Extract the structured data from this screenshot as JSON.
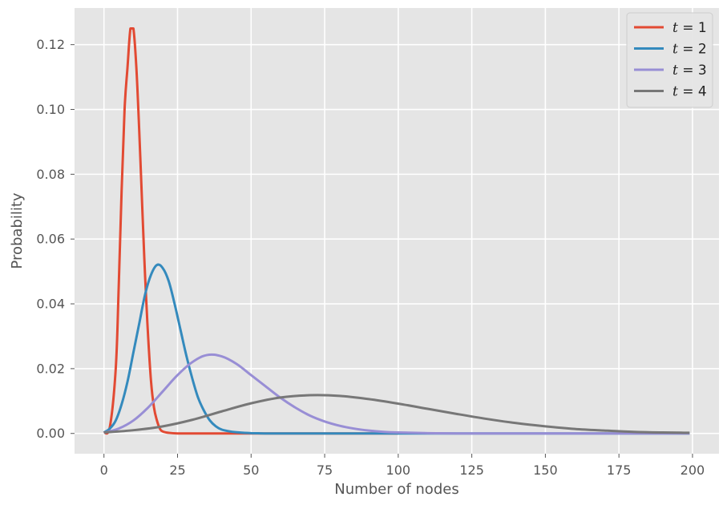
{
  "chart_data": {
    "type": "line",
    "title": "",
    "xlabel": "Number of nodes",
    "ylabel": "Probability",
    "xlim": [
      -10,
      209
    ],
    "ylim": [
      -0.00625,
      0.1313
    ],
    "xticks": [
      0,
      25,
      50,
      75,
      100,
      125,
      150,
      175,
      200
    ],
    "yticks": [
      0.0,
      0.02,
      0.04,
      0.06,
      0.08,
      0.1,
      0.12
    ],
    "xtick_labels": [
      "0",
      "25",
      "50",
      "75",
      "100",
      "125",
      "150",
      "175",
      "200"
    ],
    "ytick_labels": [
      "0.00",
      "0.02",
      "0.04",
      "0.06",
      "0.08",
      "0.10",
      "0.12"
    ],
    "grid": true,
    "legend_position": "top-right",
    "series": [
      {
        "name": "t = 1",
        "color": "#E24A33",
        "x": [
          0,
          2,
          4,
          5,
          6,
          7,
          8,
          9,
          10,
          11,
          12,
          13,
          14,
          15,
          16,
          17,
          18,
          19,
          20,
          22,
          25,
          30,
          40,
          60,
          80,
          100
        ],
        "y": [
          0.0002,
          0.002,
          0.02,
          0.045,
          0.075,
          0.1,
          0.113,
          0.125,
          0.125,
          0.113,
          0.093,
          0.07,
          0.048,
          0.03,
          0.016,
          0.008,
          0.004,
          0.0015,
          0.0006,
          0.0002,
          0.0,
          0.0,
          0.0,
          0.0,
          0.0,
          0.0
        ]
      },
      {
        "name": "t = 2",
        "color": "#348ABD",
        "x": [
          0,
          2,
          4,
          6,
          8,
          10,
          12,
          14,
          16,
          18,
          20,
          22,
          24,
          26,
          28,
          30,
          32,
          34,
          36,
          38,
          40,
          43,
          46,
          50,
          55,
          60,
          70,
          90,
          120,
          160,
          199
        ],
        "y": [
          0.0003,
          0.0015,
          0.004,
          0.009,
          0.016,
          0.025,
          0.034,
          0.043,
          0.049,
          0.052,
          0.051,
          0.047,
          0.04,
          0.032,
          0.024,
          0.017,
          0.011,
          0.007,
          0.004,
          0.0022,
          0.0012,
          0.0006,
          0.0003,
          0.0001,
          0.0,
          0.0,
          0.0,
          0.0,
          0.0,
          0.0,
          0.0
        ]
      },
      {
        "name": "t = 3",
        "color": "#988ED5",
        "x": [
          0,
          5,
          10,
          15,
          20,
          25,
          30,
          35,
          40,
          45,
          50,
          55,
          60,
          65,
          70,
          75,
          80,
          85,
          90,
          95,
          100,
          110,
          120,
          140,
          160,
          199
        ],
        "y": [
          0.0002,
          0.0015,
          0.004,
          0.008,
          0.013,
          0.018,
          0.022,
          0.0242,
          0.0238,
          0.0215,
          0.018,
          0.0145,
          0.011,
          0.008,
          0.0055,
          0.0037,
          0.0024,
          0.0015,
          0.0009,
          0.0005,
          0.0003,
          0.0001,
          0.0,
          0.0,
          0.0,
          0.0
        ]
      },
      {
        "name": "t = 4",
        "color": "#777777",
        "x": [
          0,
          10,
          20,
          30,
          40,
          50,
          60,
          70,
          80,
          90,
          100,
          110,
          120,
          130,
          140,
          150,
          160,
          170,
          180,
          190,
          199
        ],
        "y": [
          0.0003,
          0.001,
          0.0022,
          0.0042,
          0.0068,
          0.0093,
          0.0111,
          0.0118,
          0.0116,
          0.0106,
          0.0092,
          0.0076,
          0.006,
          0.0045,
          0.0032,
          0.0022,
          0.0014,
          0.0009,
          0.0005,
          0.0003,
          0.0002
        ]
      }
    ]
  }
}
